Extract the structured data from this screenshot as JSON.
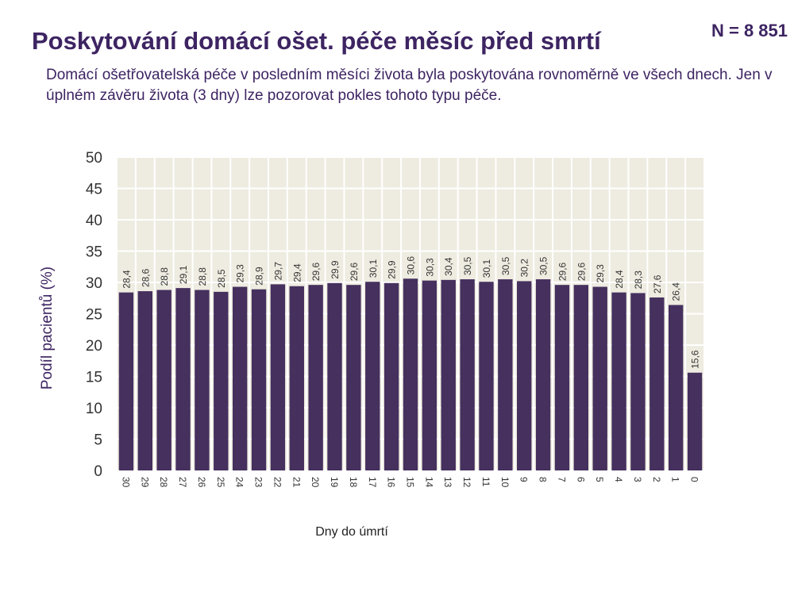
{
  "header": {
    "title": "Poskytování domácí ošet. péče měsíc před smrtí",
    "sample_size": "N = 8 851",
    "description": "Domácí ošetřovatelská péče v posledním měsíci života byla poskytována rovnoměrně ve všech dnech. Jen v úplném závěru života (3 dny) lze pozorovat pokles tohoto typu péče."
  },
  "colors": {
    "bar": "#45305e",
    "plot_background": "#eeebe0",
    "grid": "#ffffff",
    "text": "#3d2462",
    "axis_text": "#333333"
  },
  "chart_data": {
    "type": "bar",
    "title": "",
    "xlabel": "Dny do úmrtí",
    "ylabel": "Podíl pacientů (%)",
    "ylim": [
      0,
      50
    ],
    "yticks": [
      0,
      5,
      10,
      15,
      20,
      25,
      30,
      35,
      40,
      45,
      50
    ],
    "grid": true,
    "categories": [
      "30",
      "29",
      "28",
      "27",
      "26",
      "25",
      "24",
      "23",
      "22",
      "21",
      "20",
      "19",
      "18",
      "17",
      "16",
      "15",
      "14",
      "13",
      "12",
      "11",
      "10",
      "9",
      "8",
      "7",
      "6",
      "5",
      "4",
      "3",
      "2",
      "1",
      "0"
    ],
    "values": [
      28.4,
      28.6,
      28.8,
      29.1,
      28.8,
      28.5,
      29.3,
      28.9,
      29.7,
      29.4,
      29.6,
      29.9,
      29.6,
      30.1,
      29.9,
      30.6,
      30.3,
      30.4,
      30.5,
      30.1,
      30.5,
      30.2,
      30.5,
      29.6,
      29.6,
      29.3,
      28.4,
      28.3,
      27.6,
      26.4,
      15.6
    ],
    "value_labels": [
      "28,4",
      "28,6",
      "28,8",
      "29,1",
      "28,8",
      "28,5",
      "29,3",
      "28,9",
      "29,7",
      "29,4",
      "29,6",
      "29,9",
      "29,6",
      "30,1",
      "29,9",
      "30,6",
      "30,3",
      "30,4",
      "30,5",
      "30,1",
      "30,5",
      "30,2",
      "30,5",
      "29,6",
      "29,6",
      "29,3",
      "28,4",
      "28,3",
      "27,6",
      "26,4",
      "15,6"
    ]
  }
}
